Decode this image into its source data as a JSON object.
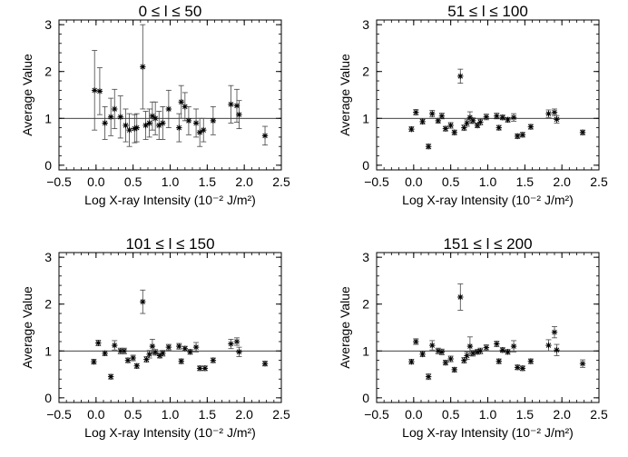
{
  "chart_data": [
    {
      "type": "scatter",
      "title": "0 ≤ l ≤ 50",
      "xlabel": "Log X-ray Intensity (10⁻² J/m²)",
      "ylabel": "Average Value",
      "xlim": [
        -0.5,
        2.5
      ],
      "ylim": [
        -0.1,
        3.1
      ],
      "xticks": [
        -0.5,
        0.0,
        0.5,
        1.0,
        1.5,
        2.0,
        2.5
      ],
      "xtick_labels": [
        "−0.5",
        "0.0",
        "0.5",
        "1.0",
        "1.5",
        "2.0",
        "2.5"
      ],
      "yticks": [
        0,
        1,
        2,
        3
      ],
      "ytick_labels": [
        "0",
        "1",
        "2",
        "3"
      ],
      "reference_line_y": 1,
      "grid": false,
      "points": [
        {
          "x": -0.02,
          "y": 1.6,
          "err": 0.85
        },
        {
          "x": 0.05,
          "y": 1.58,
          "err": 0.5
        },
        {
          "x": 0.12,
          "y": 0.9,
          "err": 0.35
        },
        {
          "x": 0.2,
          "y": 1.03,
          "err": 0.4
        },
        {
          "x": 0.25,
          "y": 1.2,
          "err": 0.42
        },
        {
          "x": 0.33,
          "y": 1.03,
          "err": 0.45
        },
        {
          "x": 0.4,
          "y": 0.85,
          "err": 0.35
        },
        {
          "x": 0.45,
          "y": 0.75,
          "err": 0.35
        },
        {
          "x": 0.52,
          "y": 0.78,
          "err": 0.3
        },
        {
          "x": 0.55,
          "y": 0.8,
          "err": 0.3
        },
        {
          "x": 0.63,
          "y": 2.1,
          "err": 0.9
        },
        {
          "x": 0.67,
          "y": 0.85,
          "err": 0.3
        },
        {
          "x": 0.72,
          "y": 0.9,
          "err": 0.3
        },
        {
          "x": 0.76,
          "y": 1.05,
          "err": 0.3
        },
        {
          "x": 0.8,
          "y": 1.0,
          "err": 0.35
        },
        {
          "x": 0.85,
          "y": 0.85,
          "err": 0.3
        },
        {
          "x": 0.9,
          "y": 0.9,
          "err": 0.35
        },
        {
          "x": 0.98,
          "y": 1.2,
          "err": 0.4
        },
        {
          "x": 1.12,
          "y": 0.8,
          "err": 0.3
        },
        {
          "x": 1.15,
          "y": 1.35,
          "err": 0.35
        },
        {
          "x": 1.2,
          "y": 1.25,
          "err": 0.3
        },
        {
          "x": 1.25,
          "y": 0.95,
          "err": 0.3
        },
        {
          "x": 1.35,
          "y": 0.9,
          "err": 0.3
        },
        {
          "x": 1.4,
          "y": 0.7,
          "err": 0.3
        },
        {
          "x": 1.45,
          "y": 0.75,
          "err": 0.25
        },
        {
          "x": 1.58,
          "y": 0.95,
          "err": 0.3
        },
        {
          "x": 1.82,
          "y": 1.3,
          "err": 0.4
        },
        {
          "x": 1.9,
          "y": 1.27,
          "err": 0.35
        },
        {
          "x": 1.93,
          "y": 1.08,
          "err": 0.3
        },
        {
          "x": 2.28,
          "y": 0.63,
          "err": 0.2
        }
      ]
    },
    {
      "type": "scatter",
      "title": "51 ≤ l ≤ 100",
      "xlabel": "Log X-ray Intensity (10⁻² J/m²)",
      "ylabel": "Average Value",
      "xlim": [
        -0.5,
        2.5
      ],
      "ylim": [
        -0.1,
        3.1
      ],
      "xticks": [
        -0.5,
        0.0,
        0.5,
        1.0,
        1.5,
        2.0,
        2.5
      ],
      "xtick_labels": [
        "−0.5",
        "0.0",
        "0.5",
        "1.0",
        "1.5",
        "2.0",
        "2.5"
      ],
      "yticks": [
        0,
        1,
        2,
        3
      ],
      "ytick_labels": [
        "0",
        "1",
        "2",
        "3"
      ],
      "reference_line_y": 1,
      "grid": false,
      "points": [
        {
          "x": -0.03,
          "y": 0.77,
          "err": 0.05
        },
        {
          "x": 0.03,
          "y": 1.13,
          "err": 0.06
        },
        {
          "x": 0.12,
          "y": 0.93,
          "err": 0.05
        },
        {
          "x": 0.2,
          "y": 0.4,
          "err": 0.05
        },
        {
          "x": 0.25,
          "y": 1.1,
          "err": 0.07
        },
        {
          "x": 0.33,
          "y": 0.95,
          "err": 0.05
        },
        {
          "x": 0.38,
          "y": 1.05,
          "err": 0.06
        },
        {
          "x": 0.43,
          "y": 0.78,
          "err": 0.05
        },
        {
          "x": 0.5,
          "y": 0.85,
          "err": 0.06
        },
        {
          "x": 0.55,
          "y": 0.7,
          "err": 0.05
        },
        {
          "x": 0.63,
          "y": 1.9,
          "err": 0.15
        },
        {
          "x": 0.68,
          "y": 0.8,
          "err": 0.06
        },
        {
          "x": 0.72,
          "y": 0.9,
          "err": 0.07
        },
        {
          "x": 0.76,
          "y": 1.02,
          "err": 0.12
        },
        {
          "x": 0.8,
          "y": 0.95,
          "err": 0.06
        },
        {
          "x": 0.86,
          "y": 0.85,
          "err": 0.05
        },
        {
          "x": 0.9,
          "y": 0.92,
          "err": 0.06
        },
        {
          "x": 0.98,
          "y": 1.03,
          "err": 0.06
        },
        {
          "x": 1.12,
          "y": 1.05,
          "err": 0.06
        },
        {
          "x": 1.15,
          "y": 0.8,
          "err": 0.05
        },
        {
          "x": 1.2,
          "y": 1.02,
          "err": 0.05
        },
        {
          "x": 1.27,
          "y": 0.97,
          "err": 0.05
        },
        {
          "x": 1.35,
          "y": 1.02,
          "err": 0.08
        },
        {
          "x": 1.4,
          "y": 0.62,
          "err": 0.05
        },
        {
          "x": 1.47,
          "y": 0.65,
          "err": 0.05
        },
        {
          "x": 1.58,
          "y": 0.82,
          "err": 0.05
        },
        {
          "x": 1.82,
          "y": 1.1,
          "err": 0.08
        },
        {
          "x": 1.9,
          "y": 1.13,
          "err": 0.07
        },
        {
          "x": 1.93,
          "y": 0.98,
          "err": 0.08
        },
        {
          "x": 2.28,
          "y": 0.7,
          "err": 0.05
        }
      ]
    },
    {
      "type": "scatter",
      "title": "101 ≤ l ≤ 150",
      "xlabel": "Log X-ray Intensity (10⁻² J/m²)",
      "ylabel": "Average Value",
      "xlim": [
        -0.5,
        2.5
      ],
      "ylim": [
        -0.1,
        3.1
      ],
      "xticks": [
        -0.5,
        0.0,
        0.5,
        1.0,
        1.5,
        2.0,
        2.5
      ],
      "xtick_labels": [
        "−0.5",
        "0.0",
        "0.5",
        "1.0",
        "1.5",
        "2.0",
        "2.5"
      ],
      "yticks": [
        0,
        1,
        2,
        3
      ],
      "ytick_labels": [
        "0",
        "1",
        "2",
        "3"
      ],
      "reference_line_y": 1,
      "grid": false,
      "points": [
        {
          "x": -0.03,
          "y": 0.77,
          "err": 0.05
        },
        {
          "x": 0.03,
          "y": 1.17,
          "err": 0.06
        },
        {
          "x": 0.12,
          "y": 0.95,
          "err": 0.05
        },
        {
          "x": 0.2,
          "y": 0.45,
          "err": 0.05
        },
        {
          "x": 0.25,
          "y": 1.12,
          "err": 0.1
        },
        {
          "x": 0.33,
          "y": 1.0,
          "err": 0.06
        },
        {
          "x": 0.38,
          "y": 1.0,
          "err": 0.06
        },
        {
          "x": 0.43,
          "y": 0.8,
          "err": 0.05
        },
        {
          "x": 0.5,
          "y": 0.85,
          "err": 0.06
        },
        {
          "x": 0.55,
          "y": 0.68,
          "err": 0.05
        },
        {
          "x": 0.63,
          "y": 2.05,
          "err": 0.25
        },
        {
          "x": 0.68,
          "y": 0.82,
          "err": 0.06
        },
        {
          "x": 0.72,
          "y": 0.93,
          "err": 0.08
        },
        {
          "x": 0.76,
          "y": 1.1,
          "err": 0.15
        },
        {
          "x": 0.8,
          "y": 0.97,
          "err": 0.06
        },
        {
          "x": 0.86,
          "y": 0.9,
          "err": 0.05
        },
        {
          "x": 0.9,
          "y": 0.95,
          "err": 0.06
        },
        {
          "x": 0.98,
          "y": 1.08,
          "err": 0.06
        },
        {
          "x": 1.12,
          "y": 1.1,
          "err": 0.06
        },
        {
          "x": 1.15,
          "y": 0.78,
          "err": 0.05
        },
        {
          "x": 1.2,
          "y": 1.05,
          "err": 0.05
        },
        {
          "x": 1.27,
          "y": 0.98,
          "err": 0.05
        },
        {
          "x": 1.35,
          "y": 1.08,
          "err": 0.1
        },
        {
          "x": 1.4,
          "y": 0.63,
          "err": 0.05
        },
        {
          "x": 1.47,
          "y": 0.63,
          "err": 0.05
        },
        {
          "x": 1.58,
          "y": 0.8,
          "err": 0.05
        },
        {
          "x": 1.82,
          "y": 1.15,
          "err": 0.1
        },
        {
          "x": 1.9,
          "y": 1.2,
          "err": 0.08
        },
        {
          "x": 1.93,
          "y": 0.98,
          "err": 0.1
        },
        {
          "x": 2.28,
          "y": 0.73,
          "err": 0.05
        }
      ]
    },
    {
      "type": "scatter",
      "title": "151 ≤ l ≤ 200",
      "xlabel": "Log X-ray Intensity (10⁻² J/m²)",
      "ylabel": "Average Value",
      "xlim": [
        -0.5,
        2.5
      ],
      "ylim": [
        -0.1,
        3.1
      ],
      "xticks": [
        -0.5,
        0.0,
        0.5,
        1.0,
        1.5,
        2.0,
        2.5
      ],
      "xtick_labels": [
        "−0.5",
        "0.0",
        "0.5",
        "1.0",
        "1.5",
        "2.0",
        "2.5"
      ],
      "yticks": [
        0,
        1,
        2,
        3
      ],
      "ytick_labels": [
        "0",
        "1",
        "2",
        "3"
      ],
      "reference_line_y": 1,
      "grid": false,
      "points": [
        {
          "x": -0.03,
          "y": 0.77,
          "err": 0.05
        },
        {
          "x": 0.03,
          "y": 1.2,
          "err": 0.06
        },
        {
          "x": 0.12,
          "y": 0.93,
          "err": 0.05
        },
        {
          "x": 0.2,
          "y": 0.45,
          "err": 0.06
        },
        {
          "x": 0.25,
          "y": 1.12,
          "err": 0.1
        },
        {
          "x": 0.33,
          "y": 1.0,
          "err": 0.06
        },
        {
          "x": 0.38,
          "y": 0.98,
          "err": 0.06
        },
        {
          "x": 0.43,
          "y": 0.75,
          "err": 0.05
        },
        {
          "x": 0.5,
          "y": 0.83,
          "err": 0.06
        },
        {
          "x": 0.55,
          "y": 0.6,
          "err": 0.05
        },
        {
          "x": 0.63,
          "y": 2.15,
          "err": 0.28
        },
        {
          "x": 0.68,
          "y": 0.8,
          "err": 0.06
        },
        {
          "x": 0.72,
          "y": 0.9,
          "err": 0.08
        },
        {
          "x": 0.76,
          "y": 1.1,
          "err": 0.2
        },
        {
          "x": 0.8,
          "y": 0.95,
          "err": 0.06
        },
        {
          "x": 0.86,
          "y": 0.98,
          "err": 0.05
        },
        {
          "x": 0.9,
          "y": 1.0,
          "err": 0.06
        },
        {
          "x": 0.98,
          "y": 1.07,
          "err": 0.06
        },
        {
          "x": 1.12,
          "y": 1.15,
          "err": 0.06
        },
        {
          "x": 1.15,
          "y": 0.78,
          "err": 0.05
        },
        {
          "x": 1.2,
          "y": 1.02,
          "err": 0.05
        },
        {
          "x": 1.27,
          "y": 0.98,
          "err": 0.05
        },
        {
          "x": 1.35,
          "y": 1.1,
          "err": 0.12
        },
        {
          "x": 1.4,
          "y": 0.65,
          "err": 0.05
        },
        {
          "x": 1.47,
          "y": 0.63,
          "err": 0.05
        },
        {
          "x": 1.58,
          "y": 0.78,
          "err": 0.05
        },
        {
          "x": 1.82,
          "y": 1.12,
          "err": 0.12
        },
        {
          "x": 1.9,
          "y": 1.4,
          "err": 0.12
        },
        {
          "x": 1.93,
          "y": 1.02,
          "err": 0.12
        },
        {
          "x": 2.28,
          "y": 0.73,
          "err": 0.08
        }
      ]
    }
  ]
}
